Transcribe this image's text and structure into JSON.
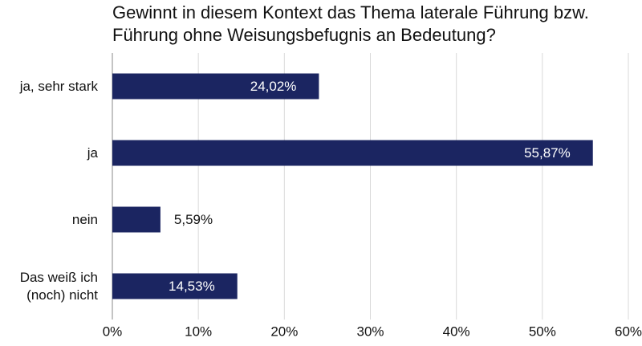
{
  "chart_data": {
    "type": "bar",
    "orientation": "horizontal",
    "title": "Gewinnt in diesem Kontext das Thema laterale Führung bzw. Führung ohne Weisungsbefugnis an Bedeutung?",
    "categories": [
      "ja, sehr stark",
      "ja",
      "nein",
      "Das weiß ich (noch) nicht"
    ],
    "values": [
      24.02,
      55.87,
      5.59,
      14.53
    ],
    "value_labels": [
      "24,02%",
      "55,87%",
      "5,59%",
      "14,53%"
    ],
    "color": "#1b2561",
    "xlim": [
      0,
      60
    ],
    "xticks": [
      {
        "value": 0,
        "label": "0%"
      },
      {
        "value": 10,
        "label": "10%"
      },
      {
        "value": 20,
        "label": "20%"
      },
      {
        "value": 30,
        "label": "30%"
      },
      {
        "value": 40,
        "label": "40%"
      },
      {
        "value": 50,
        "label": "50%"
      },
      {
        "value": 60,
        "label": "60%"
      }
    ],
    "grid": true
  }
}
